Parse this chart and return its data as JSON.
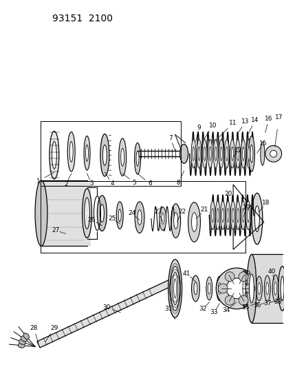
{
  "title": "93151  2100",
  "bg_color": "#ffffff",
  "line_color": "#000000",
  "fig_width": 4.14,
  "fig_height": 5.33,
  "dpi": 100
}
